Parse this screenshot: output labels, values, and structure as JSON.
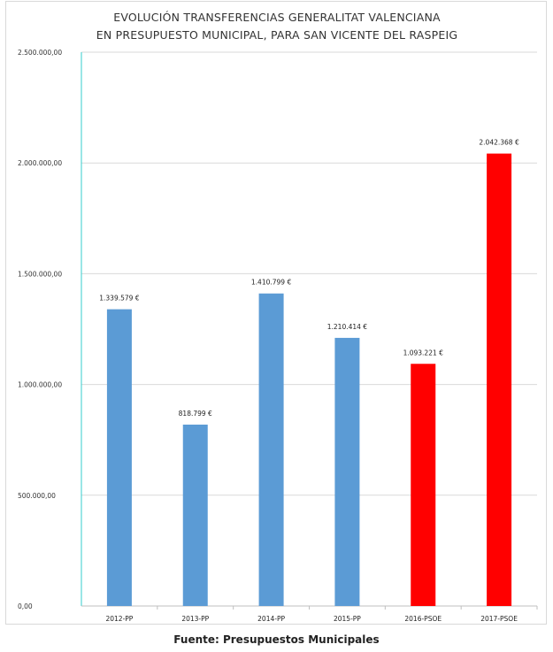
{
  "chart_data": {
    "type": "bar",
    "title": "EVOLUCIÓN TRANSFERENCIAS GENERALITAT VALENCIANA",
    "subtitle": "EN PRESUPUESTO MUNICIPAL, PARA SAN VICENTE DEL RASPEIG",
    "categories": [
      "2012-PP",
      "2013-PP",
      "2014-PP",
      "2015-PP",
      "2016-PSOE",
      "2017-PSOE"
    ],
    "values": [
      1339579,
      818799,
      1410799,
      1210414,
      1093221,
      2042368
    ],
    "data_labels": [
      "1.339.579 €",
      "818.799 €",
      "1.410.799 €",
      "1.210.414 €",
      "1.093.221 €",
      "2.042.368 €"
    ],
    "bar_colors": [
      "#5b9bd5",
      "#5b9bd5",
      "#5b9bd5",
      "#5b9bd5",
      "#ff0000",
      "#ff0000"
    ],
    "ylim": [
      0,
      2500000
    ],
    "yticks": [
      0,
      500000,
      1000000,
      1500000,
      2000000,
      2500000
    ],
    "ytick_labels": [
      "0,00",
      "500.000,00",
      "1.000.000,00",
      "1.500.000,00",
      "2.000.000,00",
      "2.500.000,00"
    ],
    "xlabel": "",
    "ylabel": "",
    "grid": true,
    "legend": "none"
  },
  "source_note": "Fuente: Presupuestos Municipales"
}
